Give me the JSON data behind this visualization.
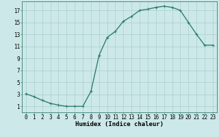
{
  "x": [
    0,
    1,
    2,
    3,
    4,
    5,
    6,
    7,
    8,
    9,
    10,
    11,
    12,
    13,
    14,
    15,
    16,
    17,
    18,
    19,
    20,
    21,
    22,
    23
  ],
  "y": [
    3.1,
    2.6,
    2.0,
    1.5,
    1.2,
    1.0,
    1.0,
    1.0,
    3.5,
    9.5,
    12.5,
    13.5,
    15.2,
    16.0,
    17.0,
    17.2,
    17.5,
    17.7,
    17.5,
    17.0,
    15.0,
    13.0,
    11.2,
    11.2
  ],
  "line_color": "#2e7d6e",
  "bg_color": "#cce8e8",
  "grid_color": "#aacfcf",
  "xlabel": "Humidex (Indice chaleur)",
  "xlim": [
    -0.5,
    23.5
  ],
  "ylim": [
    0.0,
    18.5
  ],
  "yticks": [
    1,
    3,
    5,
    7,
    9,
    11,
    13,
    15,
    17
  ],
  "marker": "+",
  "marker_size": 3,
  "line_width": 1.0,
  "xlabel_fontsize": 6.5,
  "tick_fontsize": 5.5
}
